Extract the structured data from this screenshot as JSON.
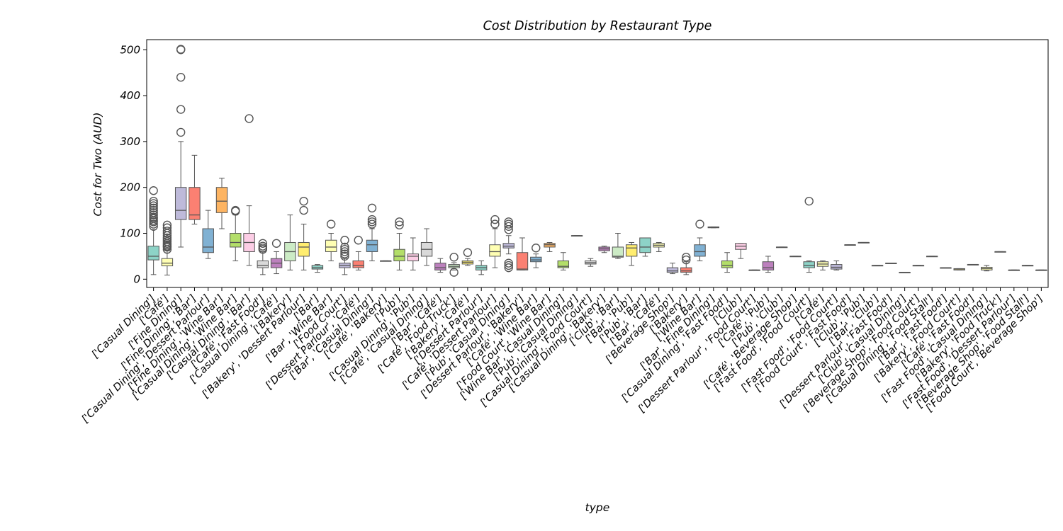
{
  "chart_data": {
    "type": "boxplot",
    "title": "Cost Distribution by Restaurant Type",
    "xlabel": "type",
    "ylabel": "Cost for Two (AUD)",
    "ylim": [
      -18,
      522
    ],
    "yticks": [
      0,
      100,
      200,
      300,
      400,
      500
    ],
    "grid": false,
    "legend": "none",
    "categories": [
      "['Casual Dining']",
      "['Café']",
      "['Fine Dining']",
      "['Fine Dining', 'Bar']",
      "['Casual Dining', 'Dessert Parlour']",
      "['Fine Dining', 'Wine Bar']",
      "['Casual Dining', 'Wine Bar']",
      "['Casual Dining', 'Bar']",
      "['Café', 'Fast Food']",
      "['Casual Dining', 'Café']",
      "['Bakery']",
      "['Bakery', 'Dessert Parlour']",
      "['Bar']",
      "['Bar', 'Wine Bar']",
      "['Food Court']",
      "['Dessert Parlour', 'Café']",
      "['Bar', 'Casual Dining']",
      "['Café', 'Bakery']",
      "['Pub']",
      "['Casual Dining', 'Pub']",
      "['Café', 'Casual Dining']",
      "['Bar', 'Café']",
      "['Café', 'Food Truck']",
      "['Bakery', 'Café']",
      "['Dessert Parlour']",
      "['Café', 'Dessert Parlour']",
      "['Pub', 'Casual Dining']",
      "['Dessert Parlour', 'Bakery']",
      "['Café', 'Wine Bar']",
      "['Food Court', 'Wine Bar']",
      "['Wine Bar', 'Casual Dining']",
      "['Pub', 'Casual Dining']",
      "['Casual Dining', 'Food Court']",
      "['Casual Dining', 'Bakery']",
      "['Club', 'Bar']",
      "['Bar', 'Pub']",
      "['Pub', 'Bar']",
      "['Bar', 'Café']",
      "['Beverage Shop']",
      "['Bakery']",
      "['Wine Bar']",
      "['Bar', 'Fine Dining']",
      "['Casual Dining', 'Fast Food']",
      "['Club']",
      "['Dessert Parlour', 'Food Court']",
      "['Café', 'Pub']",
      "['Pub', 'Club']",
      "['Café', 'Beverage Shop']",
      "['Fast Food', 'Food Court']",
      "['Café']",
      "['Fast Food', 'Food Court']",
      "['Food Court', 'Fast Food']",
      "['Club', 'Pub']",
      "['Bar', 'Club']",
      "['Dessert Parlour', 'Fast Food']",
      "['Club', 'Casual Dining']",
      "['Beverage Shop', 'Food Court']",
      "['Casual Dining', 'Food Stall']",
      "['Bar', 'Fast Food']",
      "['Bakery', 'Food Court']",
      "['Café', 'Fast Food']",
      "['Fast Food', 'Casual Dining']",
      "['Bakery', 'Food Truck']",
      "['Fast Food', 'Dessert Parlour']",
      "['Beverage Shop', 'Food Stall']",
      "['Food Court', 'Beverage Shop']"
    ],
    "series": [
      {
        "q1": 42,
        "median": 50,
        "q3": 72,
        "whisker_low": 10,
        "whisker_high": 108,
        "outliers": [
          115,
          120,
          125,
          128,
          132,
          135,
          140,
          145,
          150,
          155,
          160,
          165,
          170,
          193
        ]
      },
      {
        "q1": 29,
        "median": 35,
        "q3": 45,
        "whisker_low": 9,
        "whisker_high": 62,
        "outliers": [
          65,
          70,
          72,
          75,
          78,
          82,
          86,
          90,
          95,
          100,
          105,
          112,
          118
        ]
      },
      {
        "q1": 130,
        "median": 150,
        "q3": 200,
        "whisker_low": 70,
        "whisker_high": 300,
        "outliers": [
          320,
          370,
          440,
          500,
          501
        ]
      },
      {
        "q1": 130,
        "median": 140,
        "q3": 200,
        "whisker_low": 120,
        "whisker_high": 270,
        "outliers": []
      },
      {
        "q1": 58,
        "median": 70,
        "q3": 110,
        "whisker_low": 45,
        "whisker_high": 150,
        "outliers": []
      },
      {
        "q1": 145,
        "median": 170,
        "q3": 200,
        "whisker_low": 110,
        "whisker_high": 220,
        "outliers": []
      },
      {
        "q1": 70,
        "median": 80,
        "q3": 100,
        "whisker_low": 40,
        "whisker_high": 140,
        "outliers": [
          148,
          150
        ]
      },
      {
        "q1": 60,
        "median": 80,
        "q3": 100,
        "whisker_low": 30,
        "whisker_high": 160,
        "outliers": [
          350
        ]
      },
      {
        "q1": 25,
        "median": 30,
        "q3": 40,
        "whisker_low": 10,
        "whisker_high": 60,
        "outliers": [
          65,
          68,
          72,
          78
        ]
      },
      {
        "q1": 25,
        "median": 35,
        "q3": 45,
        "whisker_low": 12,
        "whisker_high": 60,
        "outliers": [
          78
        ]
      },
      {
        "q1": 40,
        "median": 60,
        "q3": 80,
        "whisker_low": 20,
        "whisker_high": 140,
        "outliers": []
      },
      {
        "q1": 50,
        "median": 70,
        "q3": 80,
        "whisker_low": 20,
        "whisker_high": 120,
        "outliers": [
          150,
          170
        ]
      },
      {
        "q1": 22,
        "median": 25,
        "q3": 30,
        "whisker_low": 15,
        "whisker_high": 32,
        "outliers": []
      },
      {
        "q1": 60,
        "median": 70,
        "q3": 85,
        "whisker_low": 40,
        "whisker_high": 100,
        "outliers": [
          120
        ]
      },
      {
        "q1": 25,
        "median": 30,
        "q3": 35,
        "whisker_low": 10,
        "whisker_high": 45,
        "outliers": [
          50,
          55,
          60,
          65,
          70,
          85
        ]
      },
      {
        "q1": 25,
        "median": 30,
        "q3": 40,
        "whisker_low": 20,
        "whisker_high": 60,
        "outliers": [
          85
        ]
      },
      {
        "q1": 60,
        "median": 75,
        "q3": 85,
        "whisker_low": 40,
        "whisker_high": 110,
        "outliers": [
          120,
          125,
          130,
          155
        ]
      },
      {
        "q1": 40,
        "median": 40,
        "q3": 40,
        "whisker_low": 40,
        "whisker_high": 40,
        "outliers": []
      },
      {
        "q1": 40,
        "median": 50,
        "q3": 65,
        "whisker_low": 20,
        "whisker_high": 100,
        "outliers": [
          118,
          125
        ]
      },
      {
        "q1": 40,
        "median": 50,
        "q3": 55,
        "whisker_low": 20,
        "whisker_high": 90,
        "outliers": []
      },
      {
        "q1": 50,
        "median": 65,
        "q3": 80,
        "whisker_low": 30,
        "whisker_high": 110,
        "outliers": []
      },
      {
        "q1": 20,
        "median": 25,
        "q3": 35,
        "whisker_low": 15,
        "whisker_high": 45,
        "outliers": []
      },
      {
        "q1": 25,
        "median": 28,
        "q3": 32,
        "whisker_low": 20,
        "whisker_high": 36,
        "outliers": [
          15,
          48
        ]
      },
      {
        "q1": 33,
        "median": 37,
        "q3": 40,
        "whisker_low": 30,
        "whisker_high": 45,
        "outliers": [
          58
        ]
      },
      {
        "q1": 20,
        "median": 25,
        "q3": 30,
        "whisker_low": 10,
        "whisker_high": 40,
        "outliers": []
      },
      {
        "q1": 50,
        "median": 60,
        "q3": 75,
        "whisker_low": 25,
        "whisker_high": 110,
        "outliers": [
          120,
          130
        ]
      },
      {
        "q1": 68,
        "median": 72,
        "q3": 78,
        "whisker_low": 55,
        "whisker_high": 95,
        "outliers": [
          25,
          30,
          35,
          108,
          115,
          120,
          125
        ]
      },
      {
        "q1": 20,
        "median": 22,
        "q3": 58,
        "whisker_low": 20,
        "whisker_high": 90,
        "outliers": []
      },
      {
        "q1": 38,
        "median": 42,
        "q3": 48,
        "whisker_low": 25,
        "whisker_high": 55,
        "outliers": [
          68
        ]
      },
      {
        "q1": 70,
        "median": 75,
        "q3": 78,
        "whisker_low": 60,
        "whisker_high": 80,
        "outliers": []
      },
      {
        "q1": 25,
        "median": 28,
        "q3": 40,
        "whisker_low": 20,
        "whisker_high": 58,
        "outliers": []
      },
      {
        "q1": 95,
        "median": 95,
        "q3": 95,
        "whisker_low": 95,
        "whisker_high": 95,
        "outliers": []
      },
      {
        "q1": 33,
        "median": 36,
        "q3": 40,
        "whisker_low": 28,
        "whisker_high": 45,
        "outliers": []
      },
      {
        "q1": 62,
        "median": 66,
        "q3": 70,
        "whisker_low": 58,
        "whisker_high": 72,
        "outliers": []
      },
      {
        "q1": 48,
        "median": 50,
        "q3": 70,
        "whisker_low": 45,
        "whisker_high": 100,
        "outliers": []
      },
      {
        "q1": 50,
        "median": 68,
        "q3": 75,
        "whisker_low": 30,
        "whisker_high": 80,
        "outliers": []
      },
      {
        "q1": 58,
        "median": 70,
        "q3": 90,
        "whisker_low": 50,
        "whisker_high": 90,
        "outliers": []
      },
      {
        "q1": 70,
        "median": 74,
        "q3": 78,
        "whisker_low": 60,
        "whisker_high": 80,
        "outliers": []
      },
      {
        "q1": 15,
        "median": 18,
        "q3": 25,
        "whisker_low": 12,
        "whisker_high": 35,
        "outliers": []
      },
      {
        "q1": 15,
        "median": 18,
        "q3": 25,
        "whisker_low": 10,
        "whisker_high": 38,
        "outliers": [
          42,
          48
        ]
      },
      {
        "q1": 50,
        "median": 60,
        "q3": 75,
        "whisker_low": 40,
        "whisker_high": 90,
        "outliers": [
          120
        ]
      },
      {
        "q1": 112,
        "median": 113,
        "q3": 114,
        "whisker_low": 112,
        "whisker_high": 114,
        "outliers": []
      },
      {
        "q1": 25,
        "median": 30,
        "q3": 40,
        "whisker_low": 15,
        "whisker_high": 58,
        "outliers": []
      },
      {
        "q1": 65,
        "median": 72,
        "q3": 78,
        "whisker_low": 45,
        "whisker_high": 78,
        "outliers": []
      },
      {
        "q1": 20,
        "median": 20,
        "q3": 20,
        "whisker_low": 20,
        "whisker_high": 20,
        "outliers": []
      },
      {
        "q1": 20,
        "median": 25,
        "q3": 38,
        "whisker_low": 15,
        "whisker_high": 50,
        "outliers": []
      },
      {
        "q1": 70,
        "median": 70,
        "q3": 70,
        "whisker_low": 70,
        "whisker_high": 70,
        "outliers": []
      },
      {
        "q1": 50,
        "median": 50,
        "q3": 50,
        "whisker_low": 50,
        "whisker_high": 50,
        "outliers": []
      },
      {
        "q1": 25,
        "median": 30,
        "q3": 38,
        "whisker_low": 15,
        "whisker_high": 40,
        "outliers": [
          170
        ]
      },
      {
        "q1": 28,
        "median": 33,
        "q3": 38,
        "whisker_low": 20,
        "whisker_high": 40,
        "outliers": []
      },
      {
        "q1": 22,
        "median": 26,
        "q3": 32,
        "whisker_low": 20,
        "whisker_high": 40,
        "outliers": []
      },
      {
        "q1": 75,
        "median": 75,
        "q3": 75,
        "whisker_low": 75,
        "whisker_high": 75,
        "outliers": []
      },
      {
        "q1": 80,
        "median": 80,
        "q3": 80,
        "whisker_low": 80,
        "whisker_high": 80,
        "outliers": []
      },
      {
        "q1": 30,
        "median": 30,
        "q3": 30,
        "whisker_low": 30,
        "whisker_high": 30,
        "outliers": []
      },
      {
        "q1": 35,
        "median": 35,
        "q3": 35,
        "whisker_low": 35,
        "whisker_high": 35,
        "outliers": []
      },
      {
        "q1": 15,
        "median": 15,
        "q3": 15,
        "whisker_low": 15,
        "whisker_high": 15,
        "outliers": []
      },
      {
        "q1": 30,
        "median": 30,
        "q3": 30,
        "whisker_low": 30,
        "whisker_high": 30,
        "outliers": []
      },
      {
        "q1": 50,
        "median": 50,
        "q3": 50,
        "whisker_low": 50,
        "whisker_high": 50,
        "outliers": []
      },
      {
        "q1": 25,
        "median": 25,
        "q3": 25,
        "whisker_low": 25,
        "whisker_high": 25,
        "outliers": []
      },
      {
        "q1": 20,
        "median": 22,
        "q3": 23,
        "whisker_low": 20,
        "whisker_high": 23,
        "outliers": []
      },
      {
        "q1": 32,
        "median": 32,
        "q3": 32,
        "whisker_low": 32,
        "whisker_high": 32,
        "outliers": []
      },
      {
        "q1": 20,
        "median": 23,
        "q3": 26,
        "whisker_low": 18,
        "whisker_high": 30,
        "outliers": []
      },
      {
        "q1": 60,
        "median": 60,
        "q3": 60,
        "whisker_low": 60,
        "whisker_high": 60,
        "outliers": []
      },
      {
        "q1": 20,
        "median": 20,
        "q3": 20,
        "whisker_low": 20,
        "whisker_high": 20,
        "outliers": []
      },
      {
        "q1": 30,
        "median": 30,
        "q3": 30,
        "whisker_low": 30,
        "whisker_high": 30,
        "outliers": []
      },
      {
        "q1": 20,
        "median": 20,
        "q3": 20,
        "whisker_low": 20,
        "whisker_high": 20,
        "outliers": []
      }
    ],
    "palette": [
      "#8dd3c7",
      "#ffffb3",
      "#bebada",
      "#fb8072",
      "#80b1d3",
      "#fdb462",
      "#b3de69",
      "#fccde5",
      "#d9d9d9",
      "#bc80bd",
      "#ccebc5",
      "#ffed6f"
    ]
  }
}
